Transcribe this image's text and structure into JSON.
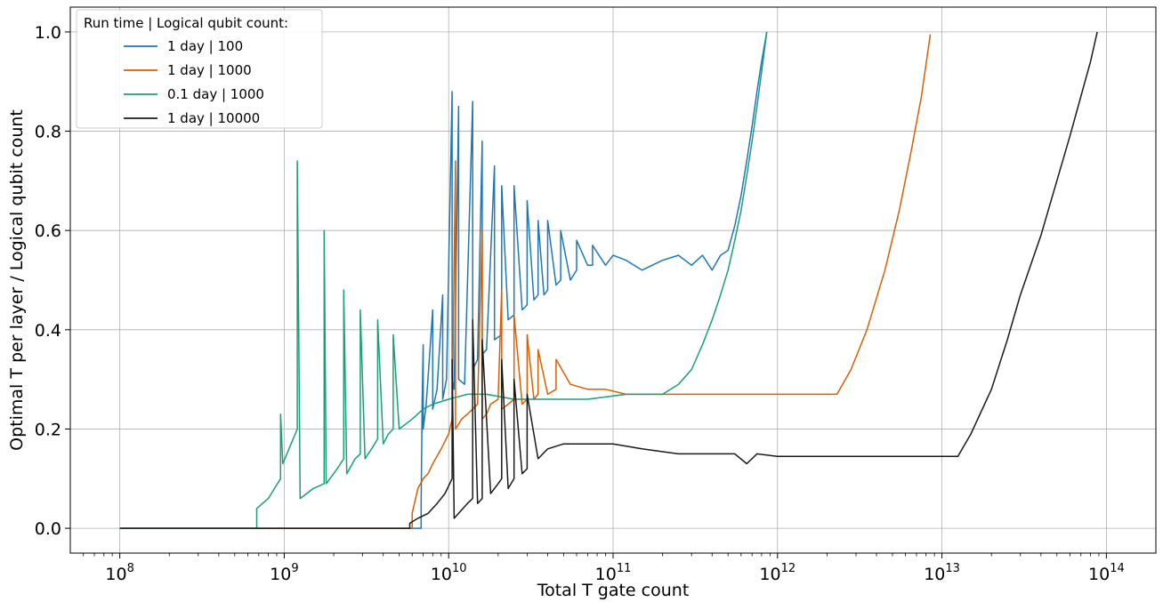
{
  "chart_data": {
    "type": "line",
    "title": "",
    "xlabel": "Total T gate count",
    "ylabel": "Optimal T per layer / Logical qubit count",
    "x_scale": "log",
    "xlim": [
      50000000,
      200000000000000
    ],
    "ylim": [
      -0.05,
      1.05
    ],
    "x_ticks": [
      100000000,
      1000000000,
      10000000000,
      100000000000,
      1000000000000,
      10000000000000,
      100000000000000
    ],
    "x_tick_labels": [
      {
        "base": "10",
        "exp": "8"
      },
      {
        "base": "10",
        "exp": "9"
      },
      {
        "base": "10",
        "exp": "10"
      },
      {
        "base": "10",
        "exp": "11"
      },
      {
        "base": "10",
        "exp": "12"
      },
      {
        "base": "10",
        "exp": "13"
      },
      {
        "base": "10",
        "exp": "14"
      }
    ],
    "y_ticks": [
      0.0,
      0.2,
      0.4,
      0.6,
      0.8,
      1.0
    ],
    "y_tick_labels": [
      "0.0",
      "0.2",
      "0.4",
      "0.6",
      "0.8",
      "1.0"
    ],
    "grid": true,
    "legend": {
      "title": "Run time | Logical qubit count:",
      "placement": "upper-left"
    },
    "series": [
      {
        "name": "1 day | 100",
        "color": "#1f77b4",
        "x": [
          100000000,
          6800000000,
          6800000000,
          6900000000,
          7000000000,
          7000000000,
          7300000000,
          8000000000,
          8000000000,
          8500000000,
          9200000000,
          9200000000,
          9700000000,
          10500000000,
          10500000000,
          10800000000,
          11500000000,
          11500000000,
          12500000000,
          14000000000,
          14000000000,
          15000000000,
          16000000000,
          16000000000,
          17000000000,
          19000000000,
          19000000000,
          21000000000,
          21000000000,
          23000000000,
          25000000000,
          25000000000,
          28000000000,
          30000000000,
          30000000000,
          33000000000,
          35000000000,
          35000000000,
          38000000000,
          40000000000,
          40000000000,
          45000000000,
          48000000000,
          48000000000,
          55000000000,
          60000000000,
          60000000000,
          70000000000,
          75000000000,
          75000000000,
          90000000000,
          100000000000,
          120000000000,
          150000000000,
          200000000000,
          250000000000,
          300000000000,
          350000000000,
          400000000000,
          450000000000,
          500000000000,
          550000000000,
          600000000000,
          650000000000,
          700000000000,
          750000000000,
          800000000000,
          860000000000
        ],
        "y": [
          0.0,
          0.0,
          0.05,
          0.25,
          0.37,
          0.2,
          0.25,
          0.44,
          0.24,
          0.28,
          0.47,
          0.26,
          0.3,
          0.88,
          0.3,
          0.28,
          0.85,
          0.3,
          0.29,
          0.86,
          0.32,
          0.34,
          0.78,
          0.35,
          0.36,
          0.73,
          0.38,
          0.39,
          0.69,
          0.42,
          0.43,
          0.69,
          0.44,
          0.45,
          0.66,
          0.46,
          0.47,
          0.62,
          0.47,
          0.48,
          0.62,
          0.49,
          0.5,
          0.6,
          0.5,
          0.52,
          0.58,
          0.53,
          0.53,
          0.57,
          0.53,
          0.55,
          0.54,
          0.52,
          0.54,
          0.55,
          0.53,
          0.55,
          0.52,
          0.55,
          0.56,
          0.61,
          0.67,
          0.74,
          0.81,
          0.88,
          0.94,
          1.0
        ]
      },
      {
        "name": "1 day | 1000",
        "color": "#d95f02",
        "x": [
          100000000,
          6000000000,
          6000000000,
          6500000000,
          7000000000,
          7500000000,
          8000000000,
          9000000000,
          10000000000,
          10500000000,
          11000000000,
          11000000000,
          11500000000,
          12000000000,
          13000000000,
          14000000000,
          15000000000,
          16000000000,
          16000000000,
          17000000000,
          18000000000,
          20000000000,
          21000000000,
          21000000000,
          23000000000,
          25000000000,
          25000000000,
          28000000000,
          30000000000,
          30000000000,
          33000000000,
          35000000000,
          35000000000,
          40000000000,
          45000000000,
          45000000000,
          55000000000,
          70000000000,
          90000000000,
          120000000000,
          150000000000,
          200000000000,
          300000000000,
          500000000000,
          800000000000,
          1000000000000,
          1500000000000,
          2000000000000,
          2300000000000,
          2800000000000,
          3500000000000,
          4500000000000,
          5500000000000,
          6500000000000,
          7500000000000,
          8500000000000
        ],
        "y": [
          0.0,
          0.0,
          0.03,
          0.08,
          0.1,
          0.11,
          0.13,
          0.16,
          0.19,
          0.22,
          0.74,
          0.2,
          0.21,
          0.22,
          0.23,
          0.24,
          0.25,
          0.6,
          0.22,
          0.23,
          0.25,
          0.26,
          0.48,
          0.24,
          0.25,
          0.26,
          0.43,
          0.25,
          0.26,
          0.39,
          0.26,
          0.27,
          0.36,
          0.27,
          0.28,
          0.34,
          0.29,
          0.28,
          0.28,
          0.27,
          0.27,
          0.27,
          0.27,
          0.27,
          0.27,
          0.27,
          0.27,
          0.27,
          0.27,
          0.32,
          0.4,
          0.52,
          0.64,
          0.76,
          0.87,
          0.995
        ]
      },
      {
        "name": "0.1 day | 1000",
        "color": "#1b9e77",
        "x": [
          100000000,
          680000000,
          680000000,
          800000000,
          950000000,
          950000000,
          980000000,
          1100000000,
          1200000000,
          1200000000,
          1250000000,
          1500000000,
          1750000000,
          1750000000,
          1800000000,
          2100000000,
          2300000000,
          2300000000,
          2400000000,
          2700000000,
          2900000000,
          2900000000,
          3100000000,
          3400000000,
          3700000000,
          3700000000,
          4000000000,
          4300000000,
          4600000000,
          4600000000,
          5000000000,
          6000000000,
          7000000000,
          8000000000,
          10000000000,
          13000000000,
          17000000000,
          25000000000,
          40000000000,
          70000000000,
          120000000000,
          200000000000,
          250000000000,
          300000000000,
          350000000000,
          400000000000,
          450000000000,
          500000000000,
          550000000000,
          600000000000,
          650000000000,
          700000000000,
          750000000000,
          800000000000,
          860000000000
        ],
        "y": [
          0.0,
          0.0,
          0.04,
          0.06,
          0.1,
          0.23,
          0.13,
          0.17,
          0.2,
          0.74,
          0.06,
          0.08,
          0.09,
          0.6,
          0.09,
          0.12,
          0.14,
          0.48,
          0.11,
          0.14,
          0.15,
          0.44,
          0.14,
          0.16,
          0.18,
          0.42,
          0.17,
          0.19,
          0.2,
          0.39,
          0.2,
          0.22,
          0.24,
          0.25,
          0.26,
          0.27,
          0.27,
          0.26,
          0.26,
          0.26,
          0.27,
          0.27,
          0.29,
          0.32,
          0.37,
          0.42,
          0.47,
          0.52,
          0.58,
          0.64,
          0.71,
          0.78,
          0.85,
          0.92,
          1.0
        ]
      },
      {
        "name": "1 day | 10000",
        "color": "#1a1a1a",
        "x": [
          100000000,
          5800000000,
          5800000000,
          6500000000,
          7500000000,
          8500000000,
          9500000000,
          10500000000,
          10500000000,
          10800000000,
          11500000000,
          13000000000,
          14000000000,
          14000000000,
          15000000000,
          16000000000,
          16000000000,
          18000000000,
          20000000000,
          21000000000,
          21000000000,
          23000000000,
          25000000000,
          25000000000,
          28000000000,
          30000000000,
          30000000000,
          35000000000,
          40000000000,
          50000000000,
          70000000000,
          100000000000,
          150000000000,
          250000000000,
          400000000000,
          550000000000,
          650000000000,
          750000000000,
          1000000000000,
          2000000000000,
          5000000000000,
          10000000000000,
          12500000000000,
          15000000000000,
          20000000000000,
          25000000000000,
          30000000000000,
          40000000000000,
          50000000000000,
          60000000000000,
          70000000000000,
          80000000000000,
          88000000000000
        ],
        "y": [
          0.0,
          0.0,
          0.01,
          0.02,
          0.03,
          0.05,
          0.07,
          0.1,
          0.34,
          0.02,
          0.03,
          0.05,
          0.06,
          0.42,
          0.05,
          0.06,
          0.38,
          0.07,
          0.09,
          0.1,
          0.34,
          0.08,
          0.1,
          0.3,
          0.11,
          0.12,
          0.27,
          0.14,
          0.16,
          0.17,
          0.17,
          0.17,
          0.16,
          0.15,
          0.15,
          0.15,
          0.13,
          0.15,
          0.145,
          0.145,
          0.145,
          0.145,
          0.145,
          0.19,
          0.28,
          0.38,
          0.47,
          0.59,
          0.7,
          0.79,
          0.87,
          0.94,
          1.0
        ]
      }
    ]
  }
}
